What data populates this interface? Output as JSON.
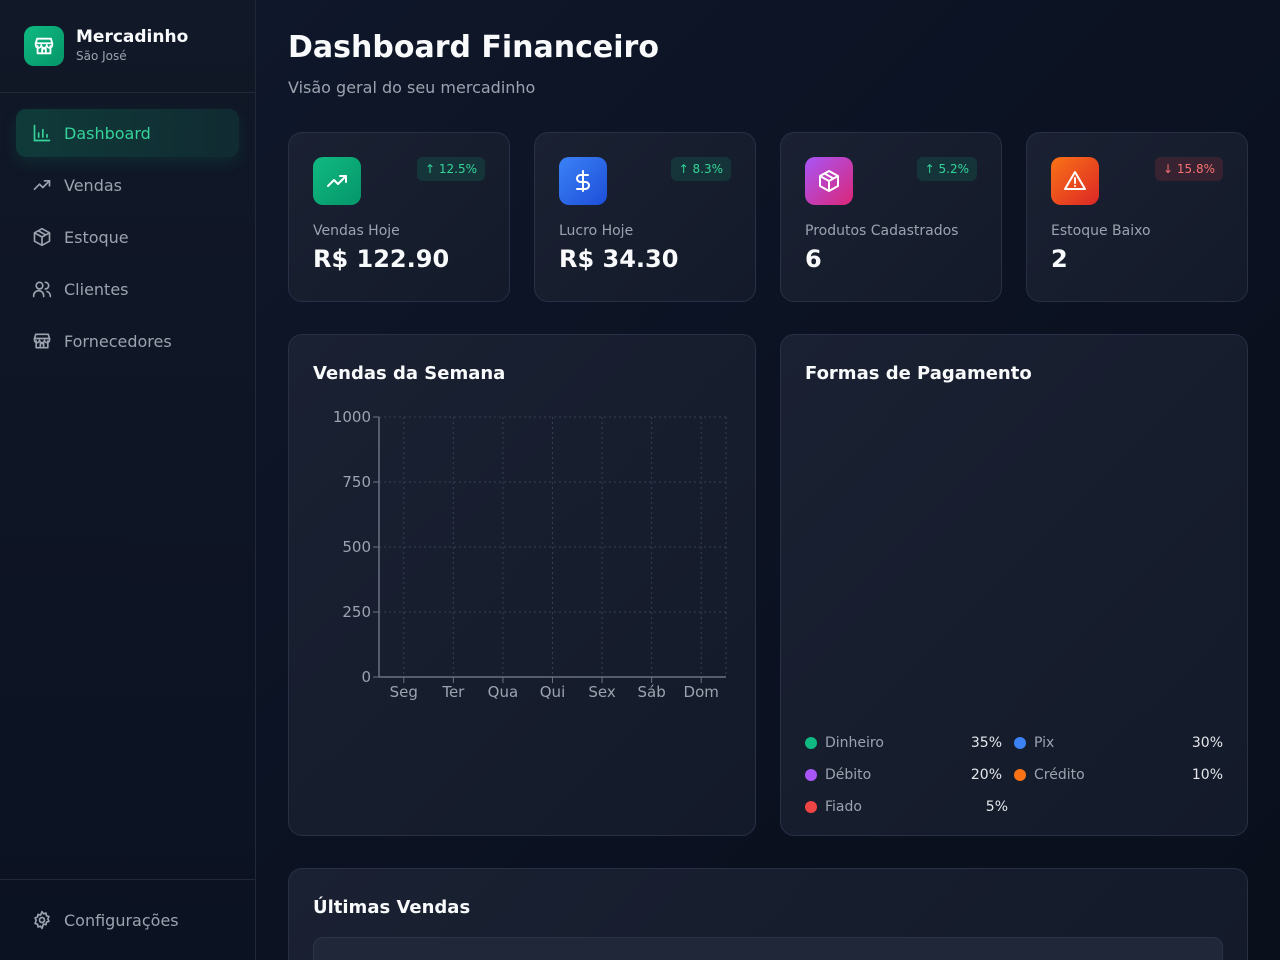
{
  "brand": {
    "name": "Mercadinho",
    "subtitle": "São José"
  },
  "sidebar": {
    "items": [
      {
        "label": "Dashboard",
        "icon": "bar-chart-icon",
        "active": true
      },
      {
        "label": "Vendas",
        "icon": "trending-up-icon"
      },
      {
        "label": "Estoque",
        "icon": "package-icon"
      },
      {
        "label": "Clientes",
        "icon": "users-icon"
      },
      {
        "label": "Fornecedores",
        "icon": "store-icon"
      }
    ],
    "settings_label": "Configurações"
  },
  "header": {
    "title": "Dashboard Financeiro",
    "subtitle": "Visão geral do seu mercadinho"
  },
  "stats": [
    {
      "label": "Vendas Hoje",
      "value": "R$ 122.90",
      "change": "↑ 12.5%",
      "trend": "up",
      "icon": "trending-up-icon",
      "color": "#10b981"
    },
    {
      "label": "Lucro Hoje",
      "value": "R$ 34.30",
      "change": "↑ 8.3%",
      "trend": "up",
      "icon": "dollar-icon",
      "color": "#2563eb"
    },
    {
      "label": "Produtos Cadastrados",
      "value": "6",
      "change": "↑ 5.2%",
      "trend": "up",
      "icon": "package-icon",
      "color": "#a855f7"
    },
    {
      "label": "Estoque Baixo",
      "value": "2",
      "change": "↓ 15.8%",
      "trend": "down",
      "icon": "warning-icon",
      "color": "#ea580c"
    }
  ],
  "sales_chart": {
    "title": "Vendas da Semana"
  },
  "chart_data": {
    "type": "bar",
    "title": "Vendas da Semana",
    "categories": [
      "Seg",
      "Ter",
      "Qua",
      "Qui",
      "Sex",
      "Sáb",
      "Dom"
    ],
    "values": [
      0,
      0,
      0,
      0,
      0,
      0,
      0
    ],
    "ylim": [
      0,
      1000
    ],
    "yticks": [
      0,
      250,
      500,
      750,
      1000
    ],
    "grid": true
  },
  "payments": {
    "title": "Formas de Pagamento",
    "items": [
      {
        "label": "Dinheiro",
        "pct": "35%",
        "color": "#10b981"
      },
      {
        "label": "Pix",
        "pct": "30%",
        "color": "#3b82f6"
      },
      {
        "label": "Débito",
        "pct": "20%",
        "color": "#a855f7"
      },
      {
        "label": "Crédito",
        "pct": "10%",
        "color": "#f97316"
      },
      {
        "label": "Fiado",
        "pct": "5%",
        "color": "#ef4444"
      }
    ]
  },
  "recent": {
    "title": "Últimas Vendas"
  }
}
